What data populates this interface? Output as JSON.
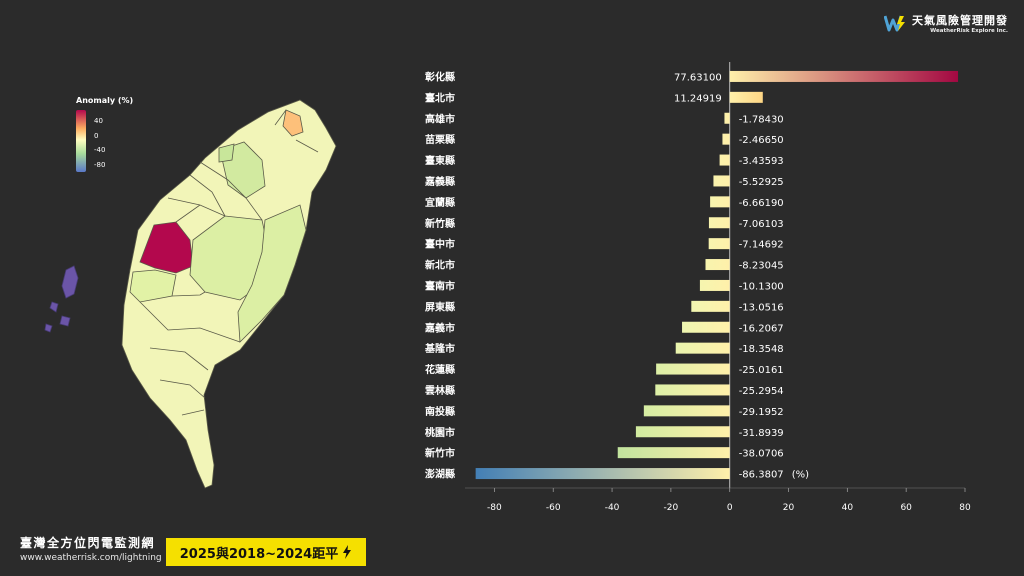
{
  "brand": {
    "name": "天氣風險管理開發",
    "subtitle": "WeatherRisk Explore Inc."
  },
  "legend": {
    "title": "Anomaly (%)",
    "ticks": [
      "40",
      "0",
      "-40",
      "-80"
    ]
  },
  "footer": {
    "title": "臺灣全方位閃電監測網",
    "url": "www.weatherrisk.com/lightning",
    "badge": "2025與2018~2024距平"
  },
  "colors": {
    "background": "#2b2b2b",
    "badge": "#f5e000",
    "axis": "#aaaaaa"
  },
  "chart_data": {
    "type": "bar",
    "orientation": "horizontal",
    "title": "2025與2018~2024距平",
    "xlabel": "",
    "ylabel": "",
    "unit_label": "(%)",
    "xlim": [
      -90,
      80
    ],
    "xticks": [
      -80,
      -60,
      -40,
      -20,
      0,
      20,
      40,
      60,
      80
    ],
    "categories": [
      "彰化縣",
      "臺北市",
      "高雄市",
      "苗栗縣",
      "臺東縣",
      "嘉義縣",
      "宜蘭縣",
      "新竹縣",
      "臺中市",
      "新北市",
      "臺南市",
      "屏東縣",
      "嘉義市",
      "基隆市",
      "花蓮縣",
      "雲林縣",
      "南投縣",
      "桃園市",
      "新竹市",
      "澎湖縣"
    ],
    "values": [
      77.631,
      11.24919,
      -1.7843,
      -2.4665,
      -3.43593,
      -5.52925,
      -6.6619,
      -7.06103,
      -7.14692,
      -8.23045,
      -10.13,
      -13.0516,
      -16.2067,
      -18.3548,
      -25.0161,
      -25.2954,
      -29.1952,
      -31.8939,
      -38.0706,
      -86.3807
    ],
    "value_labels": [
      "77.63100",
      "11.24919",
      "-1.78430",
      "-2.46650",
      "-3.43593",
      "-5.52925",
      "-6.66190",
      "-7.06103",
      "-7.14692",
      "-8.23045",
      "-10.1300",
      "-13.0516",
      "-16.2067",
      "-18.3548",
      "-25.0161",
      "-25.2954",
      "-29.1952",
      "-31.8939",
      "-38.0706",
      "-86.3807"
    ]
  }
}
